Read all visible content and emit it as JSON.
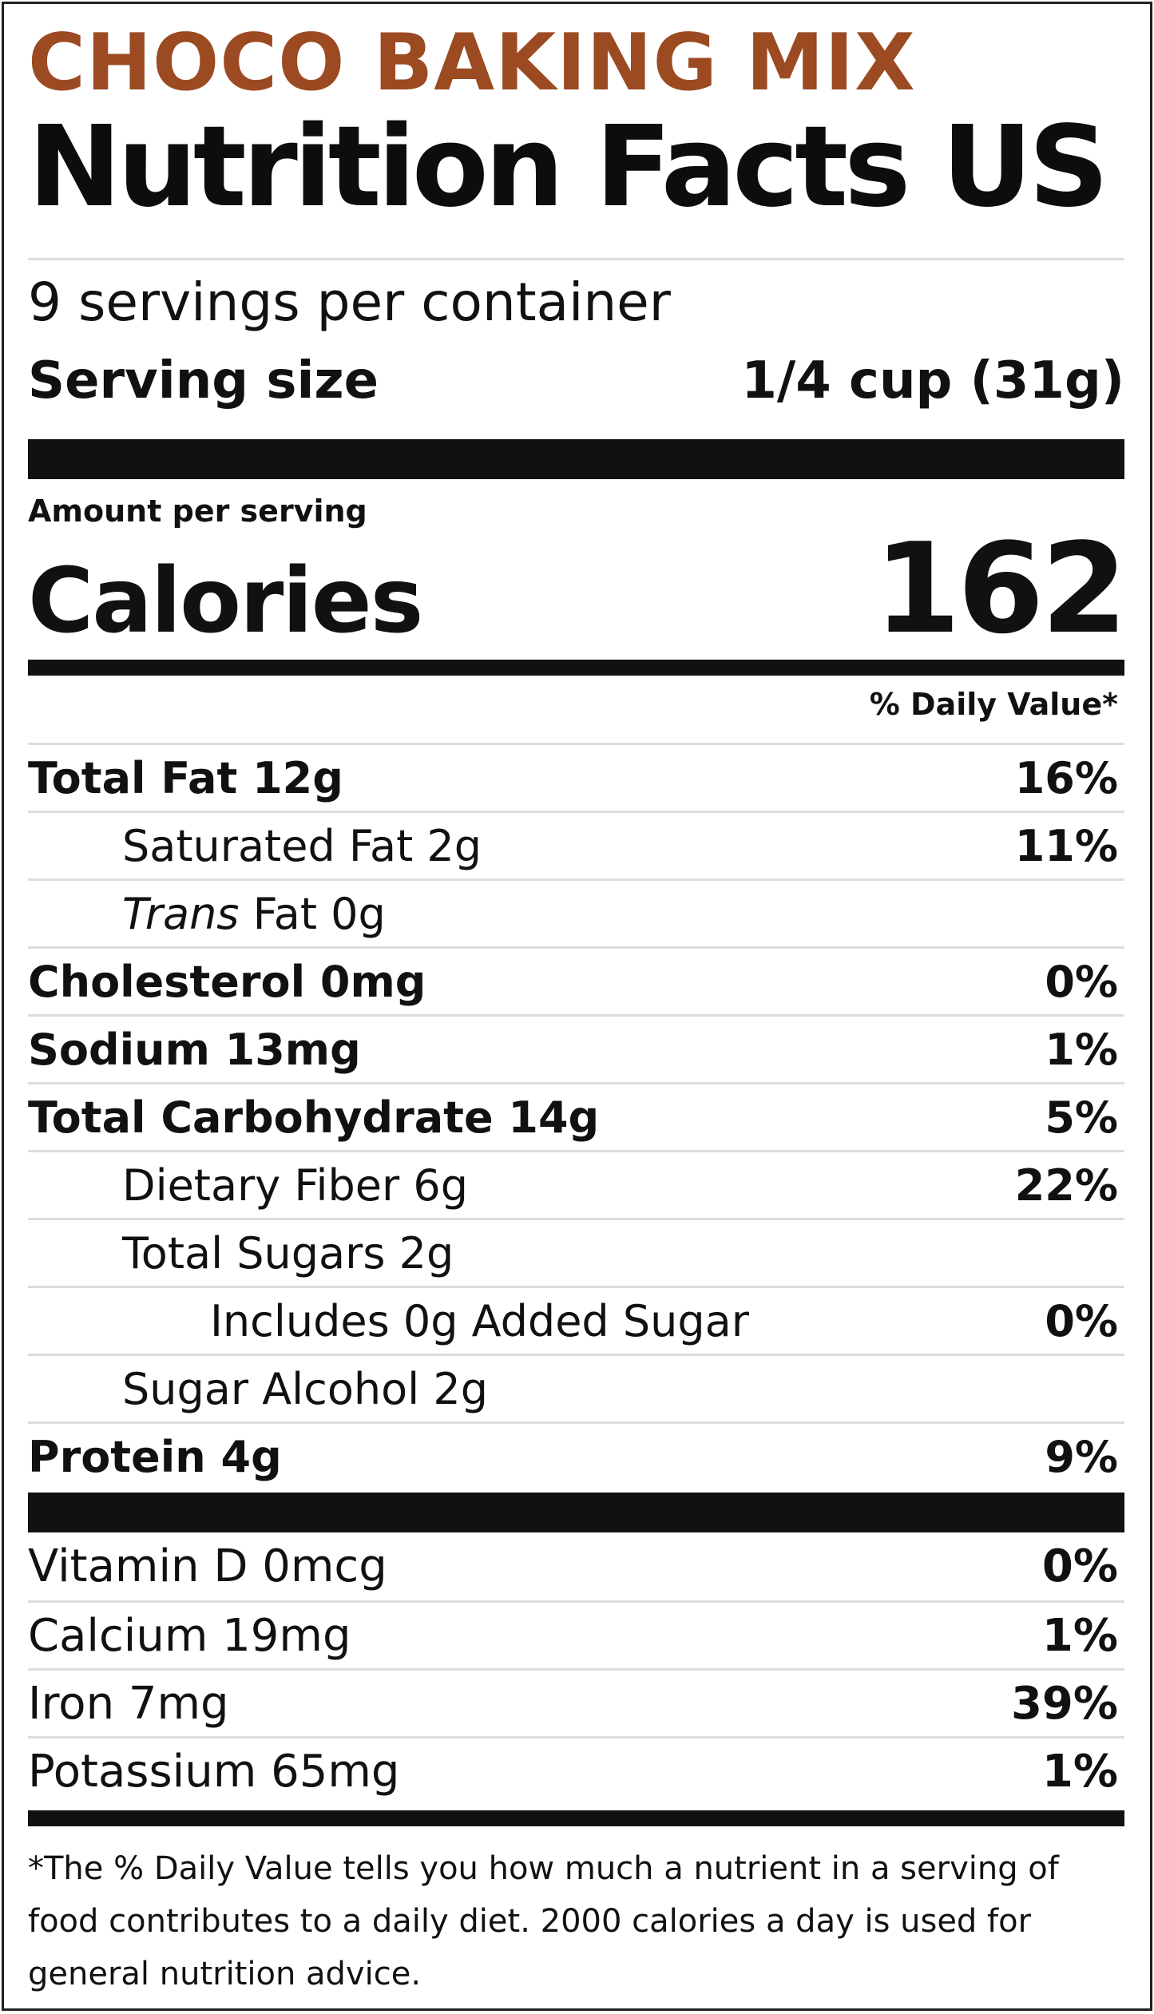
{
  "brand": "CHOCO BAKING MIX",
  "title": "Nutrition Facts US",
  "servings_per_container": "9 servings per container",
  "serving_size": {
    "label": "Serving size",
    "value": "1/4 cup (31g)"
  },
  "amount_per_serving": "Amount per serving",
  "calories": {
    "label": "Calories",
    "value": "162"
  },
  "daily_value_header": "% Daily Value*",
  "nutrients": [
    {
      "name": "Total Fat 12g",
      "pct": "16%"
    },
    {
      "name": "Saturated Fat 2g",
      "pct": "11%"
    },
    {
      "name_italic": "Trans",
      "name": " Fat 0g",
      "pct": ""
    },
    {
      "name": "Cholesterol 0mg",
      "pct": "0%"
    },
    {
      "name": "Sodium 13mg",
      "pct": "1%"
    },
    {
      "name": "Total Carbohydrate 14g",
      "pct": "5%"
    },
    {
      "name": "Dietary Fiber 6g",
      "pct": "22%"
    },
    {
      "name": "Total Sugars 2g",
      "pct": ""
    },
    {
      "name": "Includes 0g Added Sugar",
      "pct": "0%"
    },
    {
      "name": "Sugar Alcohol 2g",
      "pct": ""
    },
    {
      "name": "Protein 4g",
      "pct": "9%"
    }
  ],
  "vitamins": [
    {
      "name": "Vitamin D 0mcg",
      "pct": "0%"
    },
    {
      "name": "Calcium 19mg",
      "pct": "1%"
    },
    {
      "name": "Iron 7mg",
      "pct": "39%"
    },
    {
      "name": "Potassium 65mg",
      "pct": "1%"
    }
  ],
  "footnote": "*The % Daily Value tells you how much a nutrient in a serving of food contributes to a daily diet. 2000 calories a day is used for general nutrition advice.",
  "colors": {
    "brand": "#9b4a22",
    "text": "#111111",
    "rule": "#dddddd"
  }
}
